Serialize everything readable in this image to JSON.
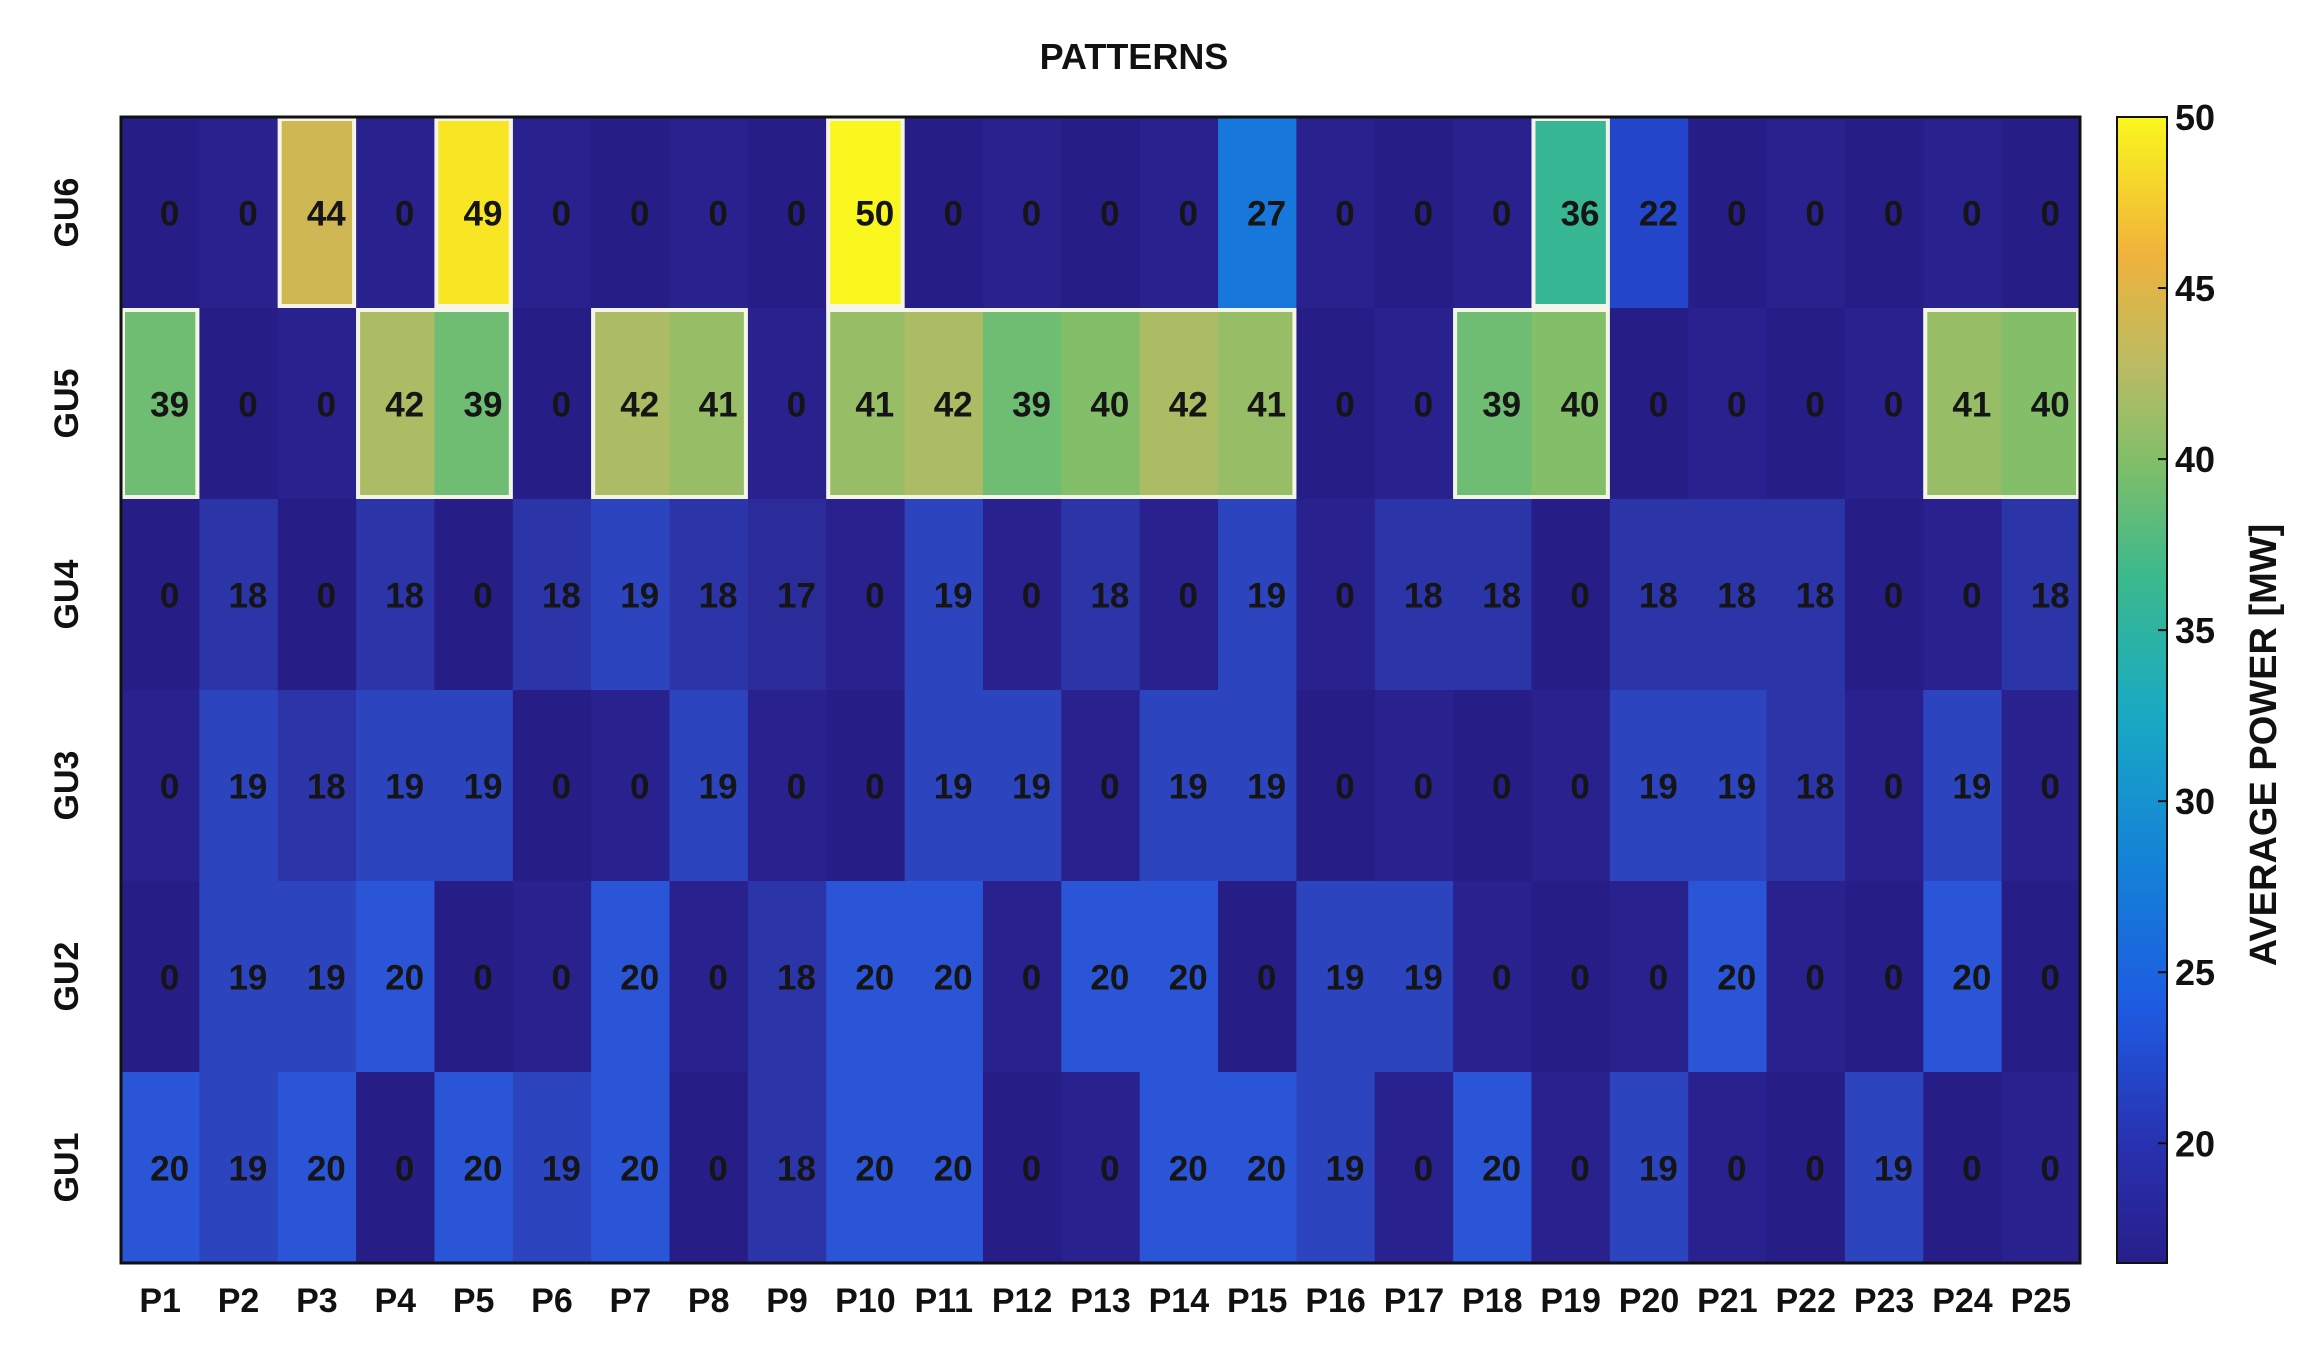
{
  "chart_data": {
    "type": "heatmap",
    "title": "PATTERNS",
    "x_categories": [
      "P1",
      "P2",
      "P3",
      "P4",
      "P5",
      "P6",
      "P7",
      "P8",
      "P9",
      "P10",
      "P11",
      "P12",
      "P13",
      "P14",
      "P15",
      "P16",
      "P17",
      "P18",
      "P19",
      "P20",
      "P21",
      "P22",
      "P23",
      "P24",
      "P25"
    ],
    "y_categories": [
      "GU6",
      "GU5",
      "GU4",
      "GU3",
      "GU2",
      "GU1"
    ],
    "values": [
      [
        0,
        0,
        44,
        0,
        49,
        0,
        0,
        0,
        0,
        50,
        0,
        0,
        0,
        0,
        27,
        0,
        0,
        0,
        36,
        22,
        0,
        0,
        0,
        0,
        0
      ],
      [
        39,
        0,
        0,
        42,
        39,
        0,
        42,
        41,
        0,
        41,
        42,
        39,
        40,
        42,
        41,
        0,
        0,
        39,
        40,
        0,
        0,
        0,
        0,
        41,
        40
      ],
      [
        0,
        18,
        0,
        18,
        0,
        18,
        19,
        18,
        17,
        0,
        19,
        0,
        18,
        0,
        19,
        0,
        18,
        18,
        0,
        18,
        18,
        18,
        0,
        0,
        18
      ],
      [
        0,
        19,
        18,
        19,
        19,
        0,
        0,
        19,
        0,
        0,
        19,
        19,
        0,
        19,
        19,
        0,
        0,
        0,
        0,
        19,
        19,
        18,
        0,
        19,
        0
      ],
      [
        0,
        19,
        19,
        20,
        0,
        0,
        20,
        0,
        18,
        20,
        20,
        0,
        20,
        20,
        0,
        19,
        19,
        0,
        0,
        0,
        20,
        0,
        0,
        20,
        0
      ],
      [
        20,
        19,
        20,
        0,
        20,
        19,
        20,
        0,
        18,
        20,
        20,
        0,
        0,
        20,
        20,
        19,
        0,
        20,
        0,
        19,
        0,
        0,
        19,
        0,
        0
      ]
    ],
    "colorbar": {
      "label": "AVERAGE POWER [MW]",
      "range": [
        16.5,
        50
      ],
      "ticks": [
        20,
        25,
        30,
        35,
        40,
        45,
        50
      ]
    },
    "highlight_threshold": 35,
    "colors": {
      "low": "#271f8a",
      "mid_blue": "#1e6ee0",
      "cyan": "#1aa3cc",
      "green": "#4ab57a",
      "khaki": "#b7bb6a",
      "orange": "#f2ad3c",
      "yellow": "#f9f51e"
    }
  }
}
